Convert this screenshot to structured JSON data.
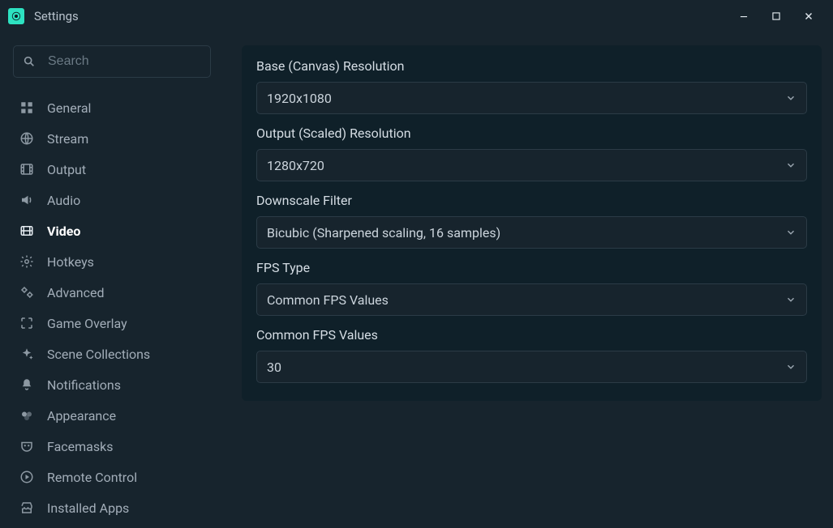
{
  "window": {
    "title": "Settings"
  },
  "search": {
    "placeholder": "Search"
  },
  "sidebar": {
    "items": [
      {
        "id": "general",
        "label": "General",
        "icon": "grid-icon",
        "active": false
      },
      {
        "id": "stream",
        "label": "Stream",
        "icon": "globe-icon",
        "active": false
      },
      {
        "id": "output",
        "label": "Output",
        "icon": "film-icon",
        "active": false
      },
      {
        "id": "audio",
        "label": "Audio",
        "icon": "volume-icon",
        "active": false
      },
      {
        "id": "video",
        "label": "Video",
        "icon": "video-reel-icon",
        "active": true
      },
      {
        "id": "hotkeys",
        "label": "Hotkeys",
        "icon": "gear-icon",
        "active": false
      },
      {
        "id": "advanced",
        "label": "Advanced",
        "icon": "gears-icon",
        "active": false
      },
      {
        "id": "game-overlay",
        "label": "Game Overlay",
        "icon": "expand-icon",
        "active": false
      },
      {
        "id": "scene-collections",
        "label": "Scene Collections",
        "icon": "sparkle-icon",
        "active": false
      },
      {
        "id": "notifications",
        "label": "Notifications",
        "icon": "bell-icon",
        "active": false
      },
      {
        "id": "appearance",
        "label": "Appearance",
        "icon": "swatch-icon",
        "active": false
      },
      {
        "id": "facemasks",
        "label": "Facemasks",
        "icon": "mask-icon",
        "active": false
      },
      {
        "id": "remote-control",
        "label": "Remote Control",
        "icon": "play-circle-icon",
        "active": false
      },
      {
        "id": "installed-apps",
        "label": "Installed Apps",
        "icon": "store-icon",
        "active": false
      }
    ]
  },
  "panel": {
    "fields": [
      {
        "id": "base-resolution",
        "label": "Base (Canvas) Resolution",
        "value": "1920x1080"
      },
      {
        "id": "output-resolution",
        "label": "Output (Scaled) Resolution",
        "value": "1280x720"
      },
      {
        "id": "downscale-filter",
        "label": "Downscale Filter",
        "value": "Bicubic (Sharpened scaling, 16 samples)"
      },
      {
        "id": "fps-type",
        "label": "FPS Type",
        "value": "Common FPS Values"
      },
      {
        "id": "common-fps",
        "label": "Common FPS Values",
        "value": "30"
      }
    ]
  },
  "colors": {
    "window_bg": "#17242d",
    "panel_bg": "#0f2029",
    "border": "#2b3b46",
    "text_primary": "#d5dde4",
    "text_muted": "#a2adb8",
    "text_active": "#ffffff",
    "accent": "#2de2c1"
  }
}
